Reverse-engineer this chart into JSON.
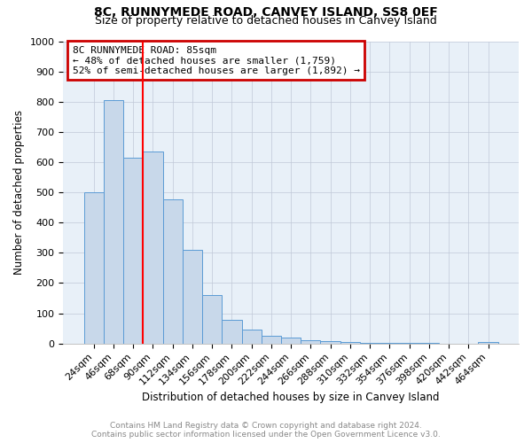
{
  "title": "8C, RUNNYMEDE ROAD, CANVEY ISLAND, SS8 0EF",
  "subtitle": "Size of property relative to detached houses in Canvey Island",
  "xlabel": "Distribution of detached houses by size in Canvey Island",
  "ylabel": "Number of detached properties",
  "footer_line1": "Contains HM Land Registry data © Crown copyright and database right 2024.",
  "footer_line2": "Contains public sector information licensed under the Open Government Licence v3.0.",
  "bar_labels": [
    "24sqm",
    "46sqm",
    "68sqm",
    "90sqm",
    "112sqm",
    "134sqm",
    "156sqm",
    "178sqm",
    "200sqm",
    "222sqm",
    "244sqm",
    "266sqm",
    "288sqm",
    "310sqm",
    "332sqm",
    "354sqm",
    "376sqm",
    "398sqm",
    "420sqm",
    "442sqm",
    "464sqm"
  ],
  "bar_values": [
    500,
    805,
    615,
    635,
    478,
    310,
    160,
    78,
    45,
    25,
    20,
    12,
    8,
    5,
    2,
    2,
    1,
    1,
    0,
    0,
    5
  ],
  "bar_color": "#c8d8ea",
  "bar_edge_color": "#5b9bd5",
  "vline_x": 3.0,
  "vline_color": "red",
  "annotation_box_text": "8C RUNNYMEDE ROAD: 85sqm\n← 48% of detached houses are smaller (1,759)\n52% of semi-detached houses are larger (1,892) →",
  "annotation_box_facecolor": "white",
  "annotation_box_edgecolor": "#cc0000",
  "ylim": [
    0,
    1000
  ],
  "yticks": [
    0,
    100,
    200,
    300,
    400,
    500,
    600,
    700,
    800,
    900,
    1000
  ],
  "grid_color": "#c0c8d8",
  "background_color": "#e8f0f8",
  "title_fontsize": 10,
  "subtitle_fontsize": 9,
  "axis_label_fontsize": 8.5,
  "tick_fontsize": 8,
  "footer_fontsize": 6.5
}
